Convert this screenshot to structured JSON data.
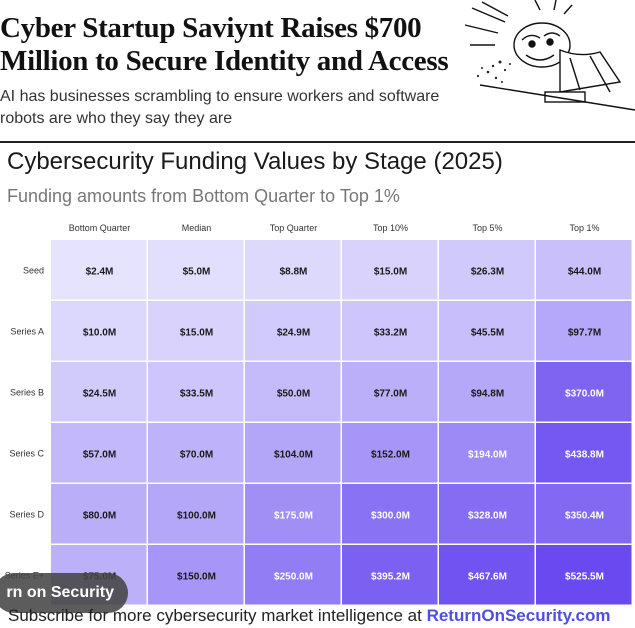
{
  "article": {
    "headline": "Cyber Startup Saviynt Raises $700 Million to Secure Identity and Access",
    "subhead": "AI has businesses scrambling to ensure workers and software robots are who they say they are"
  },
  "chart": {
    "title": "Cybersecurity Funding Values by Stage (2025)",
    "subtitle": "Funding amounts from Bottom Quarter to Top 1%"
  },
  "chart_data": {
    "type": "heatmap",
    "title": "Cybersecurity Funding Values by Stage (2025)",
    "subtitle": "Funding amounts from Bottom Quarter to Top 1%",
    "columns": [
      "Bottom Quarter",
      "Median",
      "Top Quarter",
      "Top 10%",
      "Top 5%",
      "Top 1%"
    ],
    "rows": [
      "Seed",
      "Series A",
      "Series B",
      "Series C",
      "Series D",
      "Series E+"
    ],
    "values": [
      [
        2.4,
        5.0,
        8.8,
        15.0,
        26.3,
        44.0
      ],
      [
        10.0,
        15.0,
        24.9,
        33.2,
        45.5,
        97.7
      ],
      [
        24.5,
        33.5,
        50.0,
        77.0,
        94.8,
        370.0
      ],
      [
        57.0,
        70.0,
        104.0,
        152.0,
        194.0,
        438.8
      ],
      [
        80.0,
        100.0,
        175.0,
        300.0,
        328.0,
        350.4
      ],
      [
        75.0,
        150.0,
        250.0,
        395.2,
        467.6,
        525.5
      ]
    ],
    "labels": [
      [
        "$2.4M",
        "$5.0M",
        "$8.8M",
        "$15.0M",
        "$26.3M",
        "$44.0M"
      ],
      [
        "$10.0M",
        "$15.0M",
        "$24.9M",
        "$33.2M",
        "$45.5M",
        "$97.7M"
      ],
      [
        "$24.5M",
        "$33.5M",
        "$50.0M",
        "$77.0M",
        "$94.8M",
        "$370.0M"
      ],
      [
        "$57.0M",
        "$70.0M",
        "$104.0M",
        "$152.0M",
        "$194.0M",
        "$438.8M"
      ],
      [
        "$80.0M",
        "$100.0M",
        "$175.0M",
        "$300.0M",
        "$328.0M",
        "$350.4M"
      ],
      [
        "$75.0M",
        "$150.0M",
        "$250.0M",
        "$395.2M",
        "$467.6M",
        "$525.5M"
      ]
    ],
    "color_low": "#eeeeff",
    "color_high": "#6a4af0"
  },
  "overlay": {
    "pill_text": "rn on Security"
  },
  "footer": {
    "text": "Subscribe for more cybersecurity market intelligence at ",
    "link": "ReturnOnSecurity.com"
  }
}
